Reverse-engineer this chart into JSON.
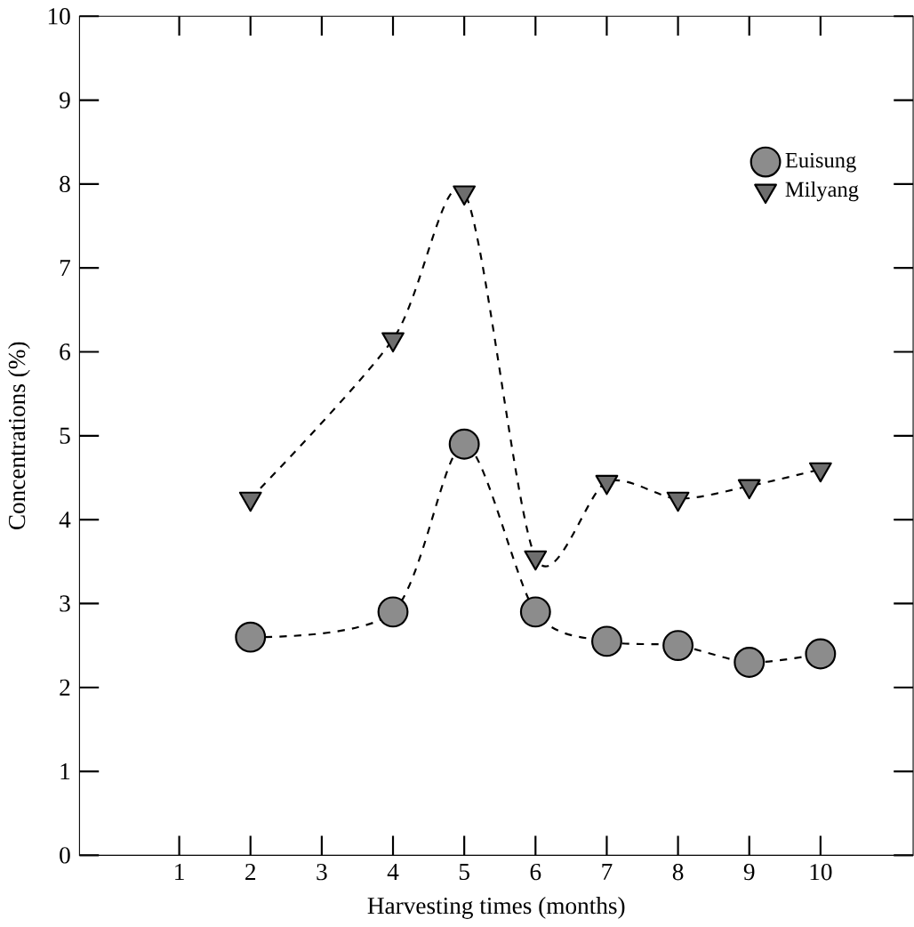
{
  "chart_data": {
    "type": "line",
    "xlabel": "Harvesting times (months)",
    "ylabel": "Concentrations (%)",
    "x": [
      2,
      4,
      5,
      6,
      7,
      8,
      9,
      10
    ],
    "series": [
      {
        "name": "Euisung",
        "color": "#8c8c8c",
        "marker": "circle",
        "values": [
          2.6,
          2.9,
          4.9,
          2.9,
          2.55,
          2.5,
          2.3,
          2.4
        ]
      },
      {
        "name": "Milyang",
        "color": "#6e6e6e",
        "marker": "triangle",
        "values": [
          4.25,
          6.15,
          7.9,
          3.55,
          4.45,
          4.25,
          4.4,
          4.6
        ]
      }
    ],
    "line_style": "dashed",
    "xlim": [
      -0.4,
      11.3
    ],
    "ylim": [
      0,
      10
    ],
    "xticks": [
      1,
      2,
      3,
      4,
      5,
      6,
      7,
      8,
      9,
      10
    ],
    "yticks": [
      0,
      1,
      2,
      3,
      4,
      5,
      6,
      7,
      8,
      9,
      10
    ],
    "grid": false,
    "legend": "top right"
  }
}
